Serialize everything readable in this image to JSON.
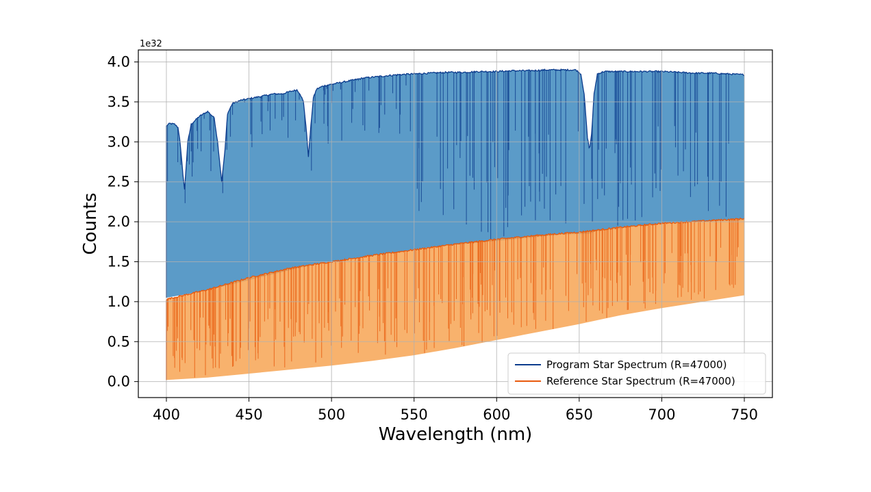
{
  "chart_data": {
    "type": "area",
    "title": "",
    "xlabel": "Wavelength (nm)",
    "ylabel": "Counts",
    "y_offset_label": "1e32",
    "xlim": [
      383,
      767
    ],
    "ylim": [
      -0.2,
      4.15
    ],
    "xticks": [
      400,
      450,
      500,
      550,
      600,
      650,
      700,
      750
    ],
    "xtick_labels": [
      "400",
      "450",
      "500",
      "550",
      "600",
      "650",
      "700",
      "750"
    ],
    "yticks": [
      0.0,
      0.5,
      1.0,
      1.5,
      2.0,
      2.5,
      3.0,
      3.5,
      4.0
    ],
    "ytick_labels": [
      "0.0",
      "0.5",
      "1.0",
      "1.5",
      "2.0",
      "2.5",
      "3.0",
      "3.5",
      "4.0"
    ],
    "grid": true,
    "legend_position": "lower-right",
    "series": [
      {
        "name": "Program Star Spectrum (R=47000)",
        "line_color": "#0b3b8c",
        "fill_color": "#5b9bc8",
        "continuum": {
          "x": [
            400,
            402,
            405,
            407,
            408,
            410,
            411,
            413,
            415,
            420,
            425,
            429,
            431,
            433.5,
            435.5,
            437,
            440,
            445,
            450,
            455,
            460,
            465,
            470,
            475,
            479,
            481,
            483,
            484.5,
            486,
            487.5,
            489,
            491,
            495,
            500,
            510,
            520,
            530,
            540,
            550,
            560,
            570,
            580,
            590,
            600,
            610,
            620,
            630,
            640,
            648,
            651,
            653,
            655,
            656.3,
            657.5,
            659,
            661,
            665,
            675,
            690,
            700,
            710,
            720,
            730,
            740,
            750
          ],
          "y": [
            3.2,
            3.23,
            3.22,
            3.18,
            3.05,
            2.6,
            2.4,
            3.0,
            3.22,
            3.32,
            3.38,
            3.3,
            3.0,
            2.5,
            2.9,
            3.35,
            3.48,
            3.52,
            3.54,
            3.56,
            3.58,
            3.6,
            3.6,
            3.63,
            3.65,
            3.6,
            3.5,
            3.2,
            2.82,
            3.2,
            3.55,
            3.66,
            3.7,
            3.72,
            3.76,
            3.8,
            3.82,
            3.84,
            3.85,
            3.86,
            3.87,
            3.87,
            3.88,
            3.88,
            3.89,
            3.89,
            3.9,
            3.9,
            3.9,
            3.85,
            3.6,
            3.05,
            2.9,
            3.1,
            3.6,
            3.85,
            3.88,
            3.88,
            3.88,
            3.88,
            3.87,
            3.86,
            3.86,
            3.85,
            3.84
          ]
        },
        "lower_envelope": {
          "x": [
            400,
            420,
            440,
            460,
            480,
            500,
            520,
            540,
            560,
            580,
            600,
            620,
            640,
            656,
            660,
            680,
            700,
            720,
            750
          ],
          "y": [
            1.05,
            1.12,
            1.22,
            1.32,
            1.42,
            1.5,
            1.56,
            1.62,
            1.68,
            1.72,
            1.76,
            1.8,
            1.84,
            1.85,
            1.88,
            1.93,
            1.98,
            2.0,
            2.02
          ]
        }
      },
      {
        "name": "Reference Star Spectrum (R=47000)",
        "line_color": "#e8590c",
        "fill_color": "#f7a453",
        "continuum": {
          "x": [
            400,
            425,
            450,
            475,
            500,
            525,
            550,
            575,
            600,
            625,
            650,
            675,
            700,
            725,
            750
          ],
          "y": [
            1.03,
            1.15,
            1.3,
            1.42,
            1.5,
            1.58,
            1.65,
            1.72,
            1.78,
            1.83,
            1.87,
            1.93,
            1.98,
            2.01,
            2.04
          ]
        },
        "lower_envelope": {
          "x": [
            400,
            425,
            450,
            475,
            500,
            525,
            550,
            575,
            600,
            625,
            650,
            675,
            700,
            725,
            750
          ],
          "y": [
            0.02,
            0.05,
            0.1,
            0.15,
            0.2,
            0.26,
            0.33,
            0.42,
            0.52,
            0.62,
            0.72,
            0.83,
            0.92,
            1.0,
            1.08
          ]
        }
      }
    ]
  }
}
